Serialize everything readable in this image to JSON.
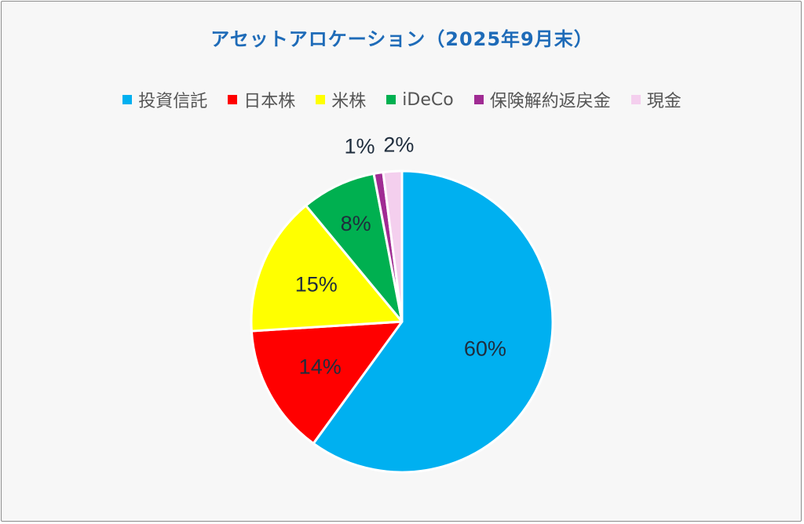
{
  "chart_data": {
    "type": "pie",
    "title": "アセットアロケーション（2025年9月末）",
    "categories": [
      "投資信託",
      "日本株",
      "米株",
      "iDeCo",
      "保険解約返戻金",
      "現金"
    ],
    "values": [
      60,
      14,
      15,
      8,
      1,
      2
    ],
    "data_labels": [
      "60%",
      "14%",
      "15%",
      "8%",
      "1%",
      "2%"
    ],
    "colors": [
      "#00b0f0",
      "#ff0000",
      "#ffff00",
      "#00b050",
      "#a02b93",
      "#f4cfee"
    ],
    "legend_position": "top",
    "start_angle_deg": 0,
    "direction": "clockwise"
  }
}
